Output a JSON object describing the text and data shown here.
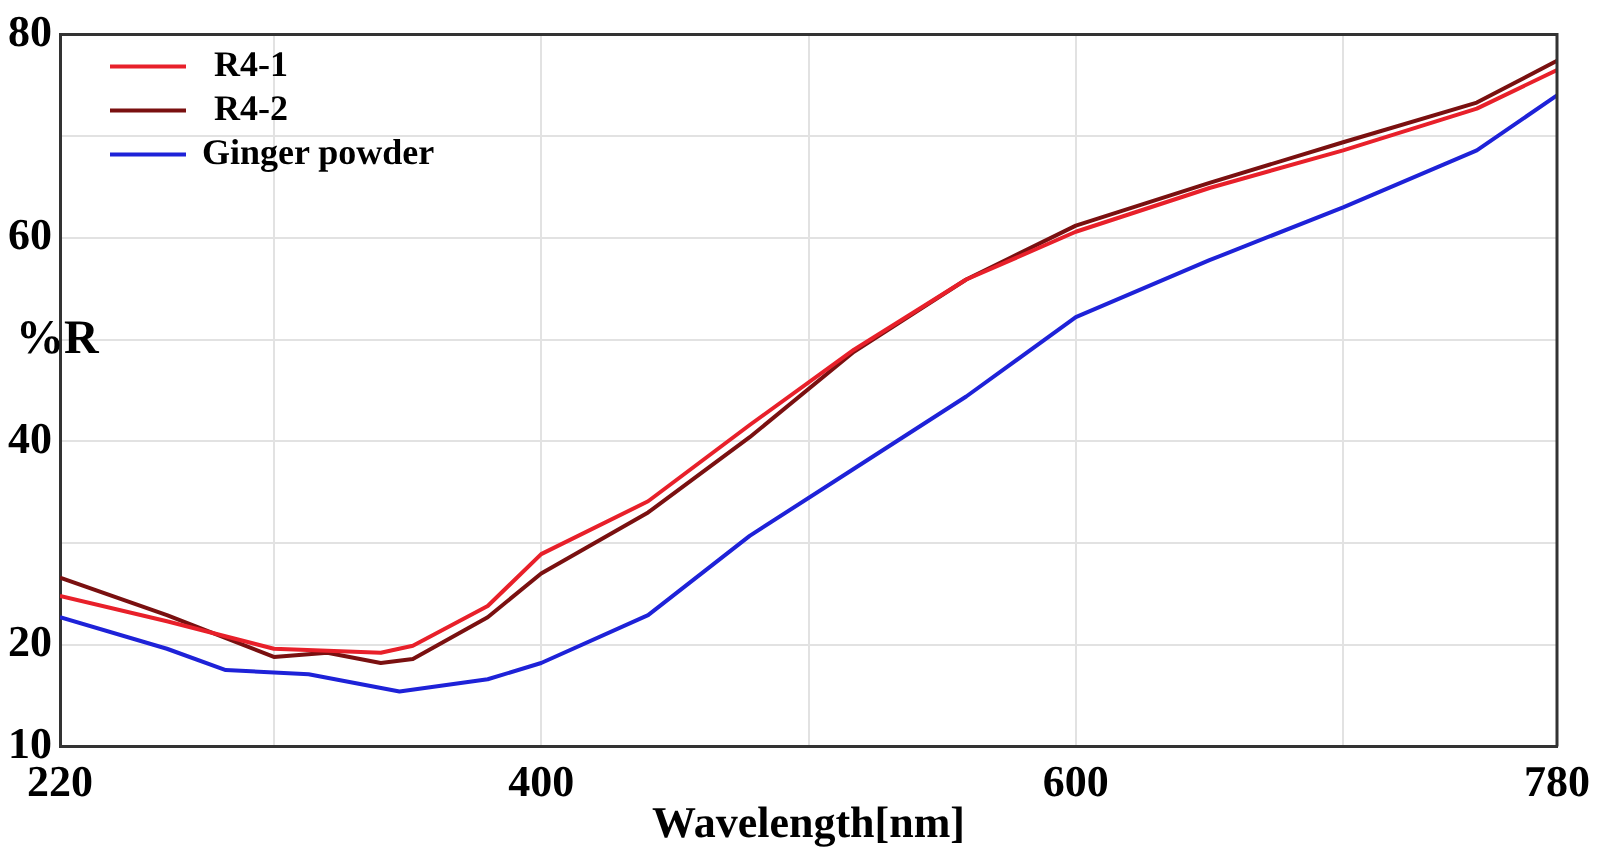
{
  "chart_data": {
    "type": "line",
    "xlabel": "Wavelength[nm]",
    "ylabel": "%R",
    "xlim": [
      220,
      780
    ],
    "xticks": [
      220,
      {
        "value": 300,
        "label": null
      },
      400,
      {
        "value": 500,
        "label": null
      },
      600,
      {
        "value": 700,
        "label": null
      },
      780
    ],
    "ylim": [
      10,
      80
    ],
    "yticks": [
      10,
      20,
      {
        "value": 30,
        "label": null
      },
      40,
      {
        "value": 50,
        "label": null
      },
      60,
      {
        "value": 70,
        "label": null
      },
      80
    ],
    "grid": true,
    "legend": "top left",
    "marker": "none",
    "line_style": "solid",
    "series": [
      {
        "name": "R4-1",
        "color": "#e8202a",
        "x": [
          220,
          260,
          300,
          340,
          352,
          380,
          400,
          440,
          478,
          517,
          559,
          600,
          650,
          700,
          750,
          780
        ],
        "values": [
          24.8,
          22.3,
          19.6,
          19.2,
          19.9,
          23.8,
          28.9,
          34.1,
          41.6,
          49,
          55.9,
          60.6,
          64.9,
          68.6,
          72.7,
          76.5
        ]
      },
      {
        "name": "R4-2",
        "color": "#7a1010",
        "x": [
          220,
          260,
          300,
          320,
          340,
          352,
          380,
          400,
          440,
          478,
          517,
          559,
          600,
          650,
          700,
          750,
          780
        ],
        "values": [
          26.6,
          22.9,
          18.8,
          19.2,
          18.2,
          18.6,
          22.7,
          27,
          33,
          40.4,
          48.8,
          55.9,
          61.2,
          65.4,
          69.4,
          73.3,
          77.4
        ]
      },
      {
        "name": "Ginger powder",
        "color": "#1e22d8",
        "x": [
          220,
          260,
          282,
          313,
          347,
          380,
          400,
          440,
          478,
          517,
          559,
          600,
          650,
          700,
          750,
          780
        ],
        "values": [
          22.7,
          19.6,
          17.5,
          17.1,
          15.4,
          16.6,
          18.2,
          22.9,
          30.7,
          37.3,
          44.4,
          52.2,
          57.8,
          63,
          68.6,
          74
        ]
      }
    ]
  }
}
